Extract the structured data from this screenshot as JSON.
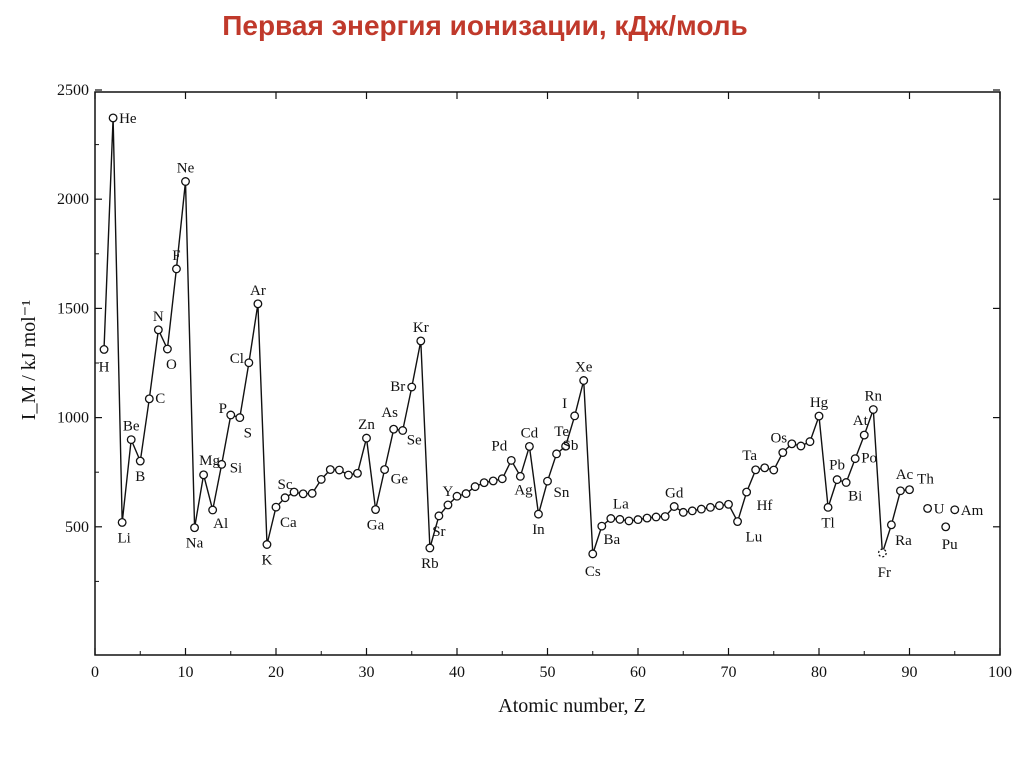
{
  "page": {
    "title": "Первая энергия ионизации, кДж/моль"
  },
  "chart_data": {
    "type": "line",
    "title": "",
    "xlabel": "Atomic number, Z",
    "ylabel": "I_M / kJ mol⁻¹",
    "xlim": [
      0,
      100
    ],
    "ylim": [
      0,
      2500
    ],
    "x_ticks": [
      0,
      10,
      20,
      30,
      40,
      50,
      60,
      70,
      80,
      90,
      100
    ],
    "y_ticks": [
      500,
      1000,
      1500,
      2000,
      2500
    ],
    "grid": false,
    "colors": {
      "line": "#111111",
      "marker_fill": "#ffffff"
    },
    "series": [
      {
        "points": [
          {
            "z": 1,
            "ie": 1312,
            "label": "H"
          },
          {
            "z": 2,
            "ie": 2372,
            "label": "He"
          },
          {
            "z": 3,
            "ie": 520,
            "label": "Li"
          },
          {
            "z": 4,
            "ie": 899,
            "label": "Be"
          },
          {
            "z": 5,
            "ie": 801,
            "label": "B"
          },
          {
            "z": 6,
            "ie": 1086,
            "label": "C"
          },
          {
            "z": 7,
            "ie": 1402,
            "label": "N"
          },
          {
            "z": 8,
            "ie": 1314,
            "label": "O"
          },
          {
            "z": 9,
            "ie": 1681,
            "label": "F"
          },
          {
            "z": 10,
            "ie": 2081,
            "label": "Ne"
          },
          {
            "z": 11,
            "ie": 496,
            "label": "Na"
          },
          {
            "z": 12,
            "ie": 738,
            "label": "Mg"
          },
          {
            "z": 13,
            "ie": 577,
            "label": "Al"
          },
          {
            "z": 14,
            "ie": 786,
            "label": "Si"
          },
          {
            "z": 15,
            "ie": 1012,
            "label": "P"
          },
          {
            "z": 16,
            "ie": 1000,
            "label": "S"
          },
          {
            "z": 17,
            "ie": 1251,
            "label": "Cl"
          },
          {
            "z": 18,
            "ie": 1521,
            "label": "Ar"
          },
          {
            "z": 19,
            "ie": 419,
            "label": "K"
          },
          {
            "z": 20,
            "ie": 590,
            "label": "Ca"
          },
          {
            "z": 21,
            "ie": 633,
            "label": "Sc"
          },
          {
            "z": 22,
            "ie": 659
          },
          {
            "z": 23,
            "ie": 651
          },
          {
            "z": 24,
            "ie": 653
          },
          {
            "z": 25,
            "ie": 717
          },
          {
            "z": 26,
            "ie": 762
          },
          {
            "z": 27,
            "ie": 760
          },
          {
            "z": 28,
            "ie": 737
          },
          {
            "z": 29,
            "ie": 745
          },
          {
            "z": 30,
            "ie": 906,
            "label": "Zn"
          },
          {
            "z": 31,
            "ie": 579,
            "label": "Ga"
          },
          {
            "z": 32,
            "ie": 762,
            "label": "Ge"
          },
          {
            "z": 33,
            "ie": 947,
            "label": "As"
          },
          {
            "z": 34,
            "ie": 941,
            "label": "Se"
          },
          {
            "z": 35,
            "ie": 1140,
            "label": "Br"
          },
          {
            "z": 36,
            "ie": 1351,
            "label": "Kr"
          },
          {
            "z": 37,
            "ie": 403,
            "label": "Rb"
          },
          {
            "z": 38,
            "ie": 550,
            "label": "Sr"
          },
          {
            "z": 39,
            "ie": 600,
            "label": "Y"
          },
          {
            "z": 40,
            "ie": 640
          },
          {
            "z": 41,
            "ie": 652
          },
          {
            "z": 42,
            "ie": 684
          },
          {
            "z": 43,
            "ie": 702
          },
          {
            "z": 44,
            "ie": 710
          },
          {
            "z": 45,
            "ie": 720
          },
          {
            "z": 46,
            "ie": 804,
            "label": "Pd"
          },
          {
            "z": 47,
            "ie": 731,
            "label": "Ag"
          },
          {
            "z": 48,
            "ie": 868,
            "label": "Cd"
          },
          {
            "z": 49,
            "ie": 558,
            "label": "In"
          },
          {
            "z": 50,
            "ie": 709,
            "label": "Sn"
          },
          {
            "z": 51,
            "ie": 834,
            "label": "Sb"
          },
          {
            "z": 52,
            "ie": 869,
            "label": "Te"
          },
          {
            "z": 53,
            "ie": 1008,
            "label": "I"
          },
          {
            "z": 54,
            "ie": 1170,
            "label": "Xe"
          },
          {
            "z": 55,
            "ie": 376,
            "label": "Cs"
          },
          {
            "z": 56,
            "ie": 503,
            "label": "Ba"
          },
          {
            "z": 57,
            "ie": 538,
            "label": "La"
          },
          {
            "z": 58,
            "ie": 534
          },
          {
            "z": 59,
            "ie": 527
          },
          {
            "z": 60,
            "ie": 533
          },
          {
            "z": 61,
            "ie": 540
          },
          {
            "z": 62,
            "ie": 545
          },
          {
            "z": 63,
            "ie": 547
          },
          {
            "z": 64,
            "ie": 593,
            "label": "Gd"
          },
          {
            "z": 65,
            "ie": 566
          },
          {
            "z": 66,
            "ie": 573
          },
          {
            "z": 67,
            "ie": 581
          },
          {
            "z": 68,
            "ie": 589
          },
          {
            "z": 69,
            "ie": 597
          },
          {
            "z": 70,
            "ie": 603
          },
          {
            "z": 71,
            "ie": 524,
            "label": "Lu"
          },
          {
            "z": 72,
            "ie": 659,
            "label": "Hf"
          },
          {
            "z": 73,
            "ie": 761,
            "label": "Ta"
          },
          {
            "z": 74,
            "ie": 770
          },
          {
            "z": 75,
            "ie": 760
          },
          {
            "z": 76,
            "ie": 840,
            "label": "Os"
          },
          {
            "z": 77,
            "ie": 880
          },
          {
            "z": 78,
            "ie": 870
          },
          {
            "z": 79,
            "ie": 890
          },
          {
            "z": 80,
            "ie": 1007,
            "label": "Hg"
          },
          {
            "z": 81,
            "ie": 589,
            "label": "Tl"
          },
          {
            "z": 82,
            "ie": 716,
            "label": "Pb"
          },
          {
            "z": 83,
            "ie": 703,
            "label": "Bi"
          },
          {
            "z": 84,
            "ie": 812,
            "label": "Po"
          },
          {
            "z": 85,
            "ie": 920,
            "label": "At"
          },
          {
            "z": 86,
            "ie": 1037,
            "label": "Rn"
          },
          {
            "z": 87,
            "ie": 380,
            "label": "Fr",
            "estimated": true
          },
          {
            "z": 88,
            "ie": 509,
            "label": "Ra"
          },
          {
            "z": 89,
            "ie": 665,
            "label": "Ac"
          },
          {
            "z": 90,
            "ie": 670,
            "label": "Th"
          }
        ]
      },
      {
        "points": [
          {
            "z": 92,
            "ie": 584,
            "label": ""
          }
        ]
      },
      {
        "points": [
          {
            "z": 94,
            "ie": 500,
            "label": "Pu"
          }
        ]
      },
      {
        "points": [
          {
            "z": 95,
            "ie": 578,
            "label": ""
          }
        ]
      }
    ],
    "annotations": [
      "U",
      "Am"
    ]
  }
}
